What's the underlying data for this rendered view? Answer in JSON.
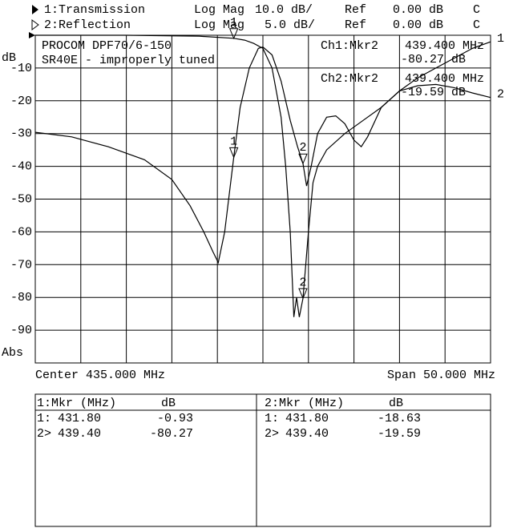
{
  "header": {
    "rows": [
      [
        "1:Transmission",
        "Log Mag",
        "10.0 dB/",
        "Ref",
        "0.00 dB",
        "C"
      ],
      [
        "2:Reflection",
        "Log Mag",
        "5.0 dB/",
        "Ref",
        "0.00 dB",
        "C"
      ]
    ]
  },
  "chart_data": {
    "type": "line",
    "title": "PROCOM DPF70/6-150",
    "subtitle": "SR40E - improperly tuned",
    "y_label": "dB",
    "format_label": "Abs",
    "center_label": "Center 435.000 MHz",
    "span_label": "Span 50.000 MHz",
    "xlim": [
      410,
      460
    ],
    "ylim": [
      -100,
      0
    ],
    "yticks": [
      -10,
      -20,
      -30,
      -40,
      -50,
      -60,
      -70,
      -80,
      -90
    ],
    "y2lim": [
      -50,
      0
    ],
    "grid": true,
    "series": [
      {
        "name": "1",
        "color": "#000000",
        "x": [
          410,
          420,
          428,
          431.8,
          433,
          434,
          435,
          436,
          437,
          437.5,
          438,
          438.4,
          438.7,
          439,
          439.4,
          440,
          440.5,
          441,
          442,
          444,
          446,
          448,
          450,
          452,
          454,
          456,
          458,
          460
        ],
        "values": [
          0,
          0,
          -0.3,
          -0.93,
          -1.5,
          -2.5,
          -4,
          -10,
          -25,
          -40,
          -60,
          -86,
          -80,
          -86,
          -80.27,
          -60,
          -45,
          -40,
          -35,
          -30,
          -26,
          -22,
          -17,
          -13,
          -10,
          -7,
          -4,
          -2
        ]
      },
      {
        "name": "2",
        "color": "#000000",
        "axis": "y2",
        "x": [
          410,
          414,
          418,
          422,
          425,
          427,
          428.5,
          429.5,
          430.1,
          430.8,
          431.8,
          432.5,
          433.5,
          434.5,
          435,
          436,
          437,
          438,
          438.8,
          439.4,
          439.8,
          440.3,
          441,
          442,
          443,
          444,
          445,
          445.8,
          446.5,
          448,
          450,
          452,
          454,
          456,
          458,
          460
        ],
        "values": [
          -14.8,
          -15.5,
          -17,
          -19,
          -22,
          -26,
          -30,
          -33,
          -34.7,
          -30,
          -18.63,
          -11,
          -5,
          -2,
          -1.8,
          -3,
          -7,
          -13,
          -17,
          -19.59,
          -23,
          -20,
          -15,
          -12.5,
          -12.3,
          -13.5,
          -16,
          -17,
          -15.5,
          -11,
          -8.5,
          -7.7,
          -7.5,
          -8,
          -8.8,
          -9.5
        ]
      }
    ],
    "markers": [
      {
        "label": "1",
        "series": 0,
        "x": 431.8,
        "value": -0.93
      },
      {
        "label": "2",
        "series": 0,
        "x": 439.4,
        "value": -80.27
      },
      {
        "label": "1",
        "series": 1,
        "x": 431.8,
        "value": -18.63
      },
      {
        "label": "2",
        "series": 1,
        "x": 439.4,
        "value": -19.59
      }
    ],
    "readouts": [
      [
        "Ch1:Mkr2",
        "439.400 MHz",
        "-80.27 dB"
      ],
      [
        "Ch2:Mkr2",
        "439.400 MHz",
        "-19.59 dB"
      ]
    ]
  },
  "marker_tables": [
    {
      "header": [
        "1:Mkr (MHz)",
        "dB"
      ],
      "rows": [
        [
          "1:",
          "431.80",
          "-0.93"
        ],
        [
          "2>",
          "439.40",
          "-80.27"
        ]
      ]
    },
    {
      "header": [
        "2:Mkr (MHz)",
        "dB"
      ],
      "rows": [
        [
          "1:",
          "431.80",
          "-18.63"
        ],
        [
          "2>",
          "439.40",
          "-19.59"
        ]
      ]
    }
  ]
}
